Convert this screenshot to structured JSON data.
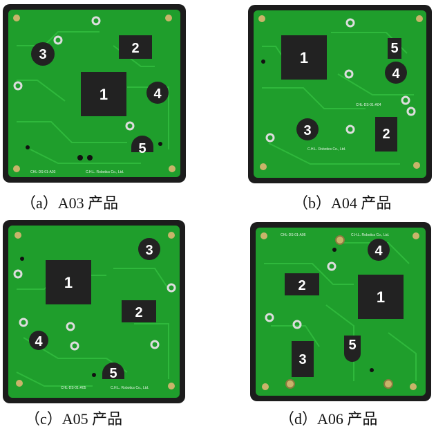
{
  "panels": [
    {
      "id": "a",
      "caption": "（a）A03 产品",
      "part_code": "CHL-DS-01-A03",
      "maker": "C.H.L. Robotics Co., Ltd."
    },
    {
      "id": "b",
      "caption": "（b）A04 产品",
      "part_code": "CHL-DS-01-A04",
      "maker": "C.H.L. Robotics Co., Ltd."
    },
    {
      "id": "c",
      "caption": "（c）A05 产品",
      "part_code": "CHL-DS-01-A05",
      "maker": "C.H.L. Robotics Co., Ltd."
    },
    {
      "id": "d",
      "caption": "（d）A06 产品",
      "part_code": "CHL-DS-01-A06",
      "maker": "C.H.L. Robotics Co., Ltd."
    }
  ],
  "numbers": [
    "1",
    "2",
    "3",
    "4",
    "5"
  ],
  "colors": {
    "pcb_green": "#1f9e2c",
    "pcb_trace": "#2fb83c",
    "frame_dark": "#1c1c1c",
    "component_black": "#222222",
    "pad_gold": "#c9b46a"
  }
}
